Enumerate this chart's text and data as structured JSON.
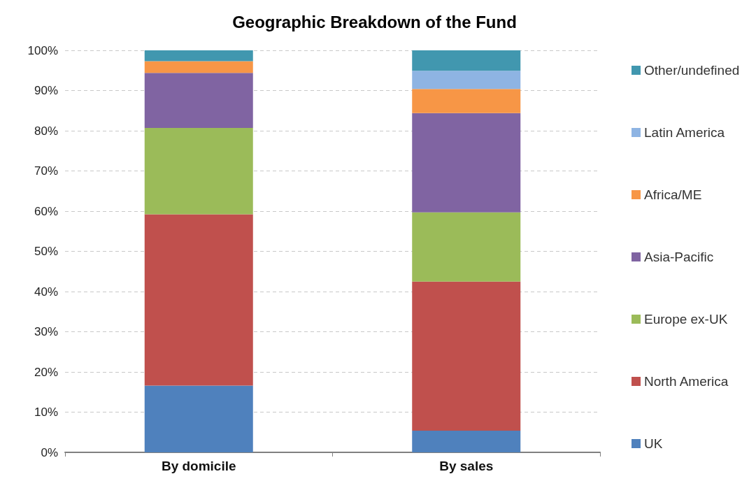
{
  "chart_data": {
    "type": "bar",
    "title": "Geographic Breakdown of the Fund",
    "stacked": true,
    "categories": [
      "By domicile",
      "By sales"
    ],
    "series": [
      {
        "name": "UK",
        "color": "#4f81bd",
        "values": [
          16.6,
          5.4
        ]
      },
      {
        "name": "North America",
        "color": "#c0504d",
        "values": [
          42.6,
          37.1
        ]
      },
      {
        "name": "Europe ex-UK",
        "color": "#9bbb59",
        "values": [
          21.5,
          17.2
        ]
      },
      {
        "name": "Asia-Pacific",
        "color": "#8064a2",
        "values": [
          13.7,
          24.7
        ]
      },
      {
        "name": "Africa/ME",
        "color": "#f79646",
        "values": [
          2.9,
          6.0
        ]
      },
      {
        "name": "Latin America",
        "color": "#8eb4e3",
        "values": [
          0,
          4.5
        ]
      },
      {
        "name": "Other/undefined",
        "color": "#4197af",
        "values": [
          2.7,
          5.1
        ]
      }
    ],
    "ylim": [
      0,
      100
    ],
    "yticks": [
      {
        "value": 0,
        "label": "0%"
      },
      {
        "value": 10,
        "label": "10%"
      },
      {
        "value": 20,
        "label": "20%"
      },
      {
        "value": 30,
        "label": "30%"
      },
      {
        "value": 40,
        "label": "40%"
      },
      {
        "value": 50,
        "label": "50%"
      },
      {
        "value": 60,
        "label": "60%"
      },
      {
        "value": 70,
        "label": "70%"
      },
      {
        "value": 80,
        "label": "80%"
      },
      {
        "value": 90,
        "label": "90%"
      },
      {
        "value": 100,
        "label": "100%"
      }
    ],
    "grid": "y",
    "legend": "right"
  }
}
